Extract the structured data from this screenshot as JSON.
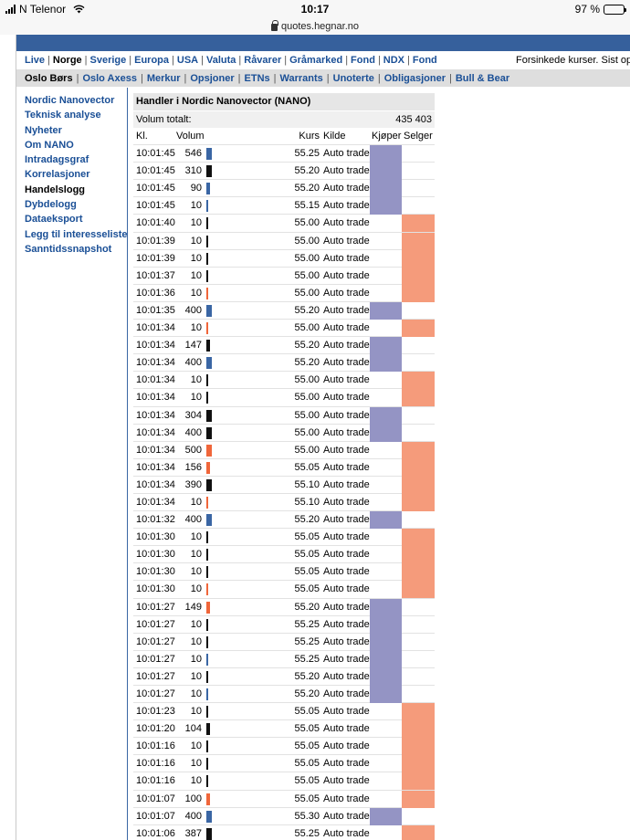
{
  "status_bar": {
    "carrier": "N Telenor",
    "time": "10:17",
    "battery": "97 %",
    "battery_level": 0.97
  },
  "url_bar": {
    "url": "quotes.hegnar.no"
  },
  "main_nav": {
    "items": [
      "Live",
      "Norge",
      "Sverige",
      "Europa",
      "USA",
      "Valuta",
      "Råvarer",
      "Gråmarked",
      "Fond",
      "NDX",
      "Fond"
    ],
    "active": "Norge",
    "delayed_notice": "Forsinkede kurser. Sist opp"
  },
  "sub_nav": {
    "items": [
      "Oslo Børs",
      "Oslo Axess",
      "Merkur",
      "Opsjoner",
      "ETNs",
      "Warrants",
      "Unoterte",
      "Obligasjoner",
      "Bull & Bear"
    ],
    "active": "Oslo Børs"
  },
  "sidebar": {
    "items": [
      "Nordic Nanovector",
      "Teknisk analyse",
      "Nyheter",
      "Om NANO",
      "Intradagsgraf",
      "Korrelasjoner",
      "Handelslogg",
      "Dybdelogg",
      "Dataeksport",
      "Legg til interesseliste",
      "Sanntidssnapshot"
    ],
    "active": "Handelslogg"
  },
  "trades": {
    "title": "Handler i Nordic Nanovector (NANO)",
    "total_label": "Volum totalt:",
    "total_value": "435 403",
    "columns": {
      "time": "Kl.",
      "volume": "Volum",
      "price": "Kurs",
      "source": "Kilde",
      "buyer": "Kjøper",
      "seller": "Selger"
    },
    "colors": {
      "buy": "#9494c4",
      "sell": "#f59b7b",
      "bar_blue": "#3a66a4",
      "bar_black": "#111111",
      "bar_orange": "#f0663a"
    },
    "rows": [
      {
        "time": "10:01:45",
        "volume": "546",
        "price": "55.25",
        "source": "Auto trade",
        "bar": "blue",
        "side": "buy"
      },
      {
        "time": "10:01:45",
        "volume": "310",
        "price": "55.20",
        "source": "Auto trade",
        "bar": "black",
        "side": "buy"
      },
      {
        "time": "10:01:45",
        "volume": "90",
        "price": "55.20",
        "source": "Auto trade",
        "bar": "blue",
        "side": "buy"
      },
      {
        "time": "10:01:45",
        "volume": "10",
        "price": "55.15",
        "source": "Auto trade",
        "bar": "blue",
        "side": "buy"
      },
      {
        "time": "10:01:40",
        "volume": "10",
        "price": "55.00",
        "source": "Auto trade",
        "bar": "black",
        "side": "sell"
      },
      {
        "time": "10:01:39",
        "volume": "10",
        "price": "55.00",
        "source": "Auto trade",
        "bar": "black",
        "side": "sell"
      },
      {
        "time": "10:01:39",
        "volume": "10",
        "price": "55.00",
        "source": "Auto trade",
        "bar": "black",
        "side": "sell"
      },
      {
        "time": "10:01:37",
        "volume": "10",
        "price": "55.00",
        "source": "Auto trade",
        "bar": "black",
        "side": "sell"
      },
      {
        "time": "10:01:36",
        "volume": "10",
        "price": "55.00",
        "source": "Auto trade",
        "bar": "orange",
        "side": "sell"
      },
      {
        "time": "10:01:35",
        "volume": "400",
        "price": "55.20",
        "source": "Auto trade",
        "bar": "blue",
        "side": "buy"
      },
      {
        "time": "10:01:34",
        "volume": "10",
        "price": "55.00",
        "source": "Auto trade",
        "bar": "orange",
        "side": "sell"
      },
      {
        "time": "10:01:34",
        "volume": "147",
        "price": "55.20",
        "source": "Auto trade",
        "bar": "black",
        "side": "buy"
      },
      {
        "time": "10:01:34",
        "volume": "400",
        "price": "55.20",
        "source": "Auto trade",
        "bar": "blue",
        "side": "buy"
      },
      {
        "time": "10:01:34",
        "volume": "10",
        "price": "55.00",
        "source": "Auto trade",
        "bar": "black",
        "side": "sell"
      },
      {
        "time": "10:01:34",
        "volume": "10",
        "price": "55.00",
        "source": "Auto trade",
        "bar": "black",
        "side": "sell"
      },
      {
        "time": "10:01:34",
        "volume": "304",
        "price": "55.00",
        "source": "Auto trade",
        "bar": "black",
        "side": "buy"
      },
      {
        "time": "10:01:34",
        "volume": "400",
        "price": "55.00",
        "source": "Auto trade",
        "bar": "black",
        "side": "buy"
      },
      {
        "time": "10:01:34",
        "volume": "500",
        "price": "55.00",
        "source": "Auto trade",
        "bar": "orange",
        "side": "sell"
      },
      {
        "time": "10:01:34",
        "volume": "156",
        "price": "55.05",
        "source": "Auto trade",
        "bar": "orange",
        "side": "sell"
      },
      {
        "time": "10:01:34",
        "volume": "390",
        "price": "55.10",
        "source": "Auto trade",
        "bar": "black",
        "side": "sell"
      },
      {
        "time": "10:01:34",
        "volume": "10",
        "price": "55.10",
        "source": "Auto trade",
        "bar": "orange",
        "side": "sell"
      },
      {
        "time": "10:01:32",
        "volume": "400",
        "price": "55.20",
        "source": "Auto trade",
        "bar": "blue",
        "side": "buy"
      },
      {
        "time": "10:01:30",
        "volume": "10",
        "price": "55.05",
        "source": "Auto trade",
        "bar": "black",
        "side": "sell"
      },
      {
        "time": "10:01:30",
        "volume": "10",
        "price": "55.05",
        "source": "Auto trade",
        "bar": "black",
        "side": "sell"
      },
      {
        "time": "10:01:30",
        "volume": "10",
        "price": "55.05",
        "source": "Auto trade",
        "bar": "black",
        "side": "sell"
      },
      {
        "time": "10:01:30",
        "volume": "10",
        "price": "55.05",
        "source": "Auto trade",
        "bar": "orange",
        "side": "sell"
      },
      {
        "time": "10:01:27",
        "volume": "149",
        "price": "55.20",
        "source": "Auto trade",
        "bar": "orange",
        "side": "buy"
      },
      {
        "time": "10:01:27",
        "volume": "10",
        "price": "55.25",
        "source": "Auto trade",
        "bar": "black",
        "side": "buy"
      },
      {
        "time": "10:01:27",
        "volume": "10",
        "price": "55.25",
        "source": "Auto trade",
        "bar": "black",
        "side": "buy"
      },
      {
        "time": "10:01:27",
        "volume": "10",
        "price": "55.25",
        "source": "Auto trade",
        "bar": "blue",
        "side": "buy"
      },
      {
        "time": "10:01:27",
        "volume": "10",
        "price": "55.20",
        "source": "Auto trade",
        "bar": "black",
        "side": "buy"
      },
      {
        "time": "10:01:27",
        "volume": "10",
        "price": "55.20",
        "source": "Auto trade",
        "bar": "blue",
        "side": "buy"
      },
      {
        "time": "10:01:23",
        "volume": "10",
        "price": "55.05",
        "source": "Auto trade",
        "bar": "black",
        "side": "sell"
      },
      {
        "time": "10:01:20",
        "volume": "104",
        "price": "55.05",
        "source": "Auto trade",
        "bar": "black",
        "side": "sell"
      },
      {
        "time": "10:01:16",
        "volume": "10",
        "price": "55.05",
        "source": "Auto trade",
        "bar": "black",
        "side": "sell"
      },
      {
        "time": "10:01:16",
        "volume": "10",
        "price": "55.05",
        "source": "Auto trade",
        "bar": "black",
        "side": "sell"
      },
      {
        "time": "10:01:16",
        "volume": "10",
        "price": "55.05",
        "source": "Auto trade",
        "bar": "black",
        "side": "sell"
      },
      {
        "time": "10:01:07",
        "volume": "100",
        "price": "55.05",
        "source": "Auto trade",
        "bar": "orange",
        "side": "sell"
      },
      {
        "time": "10:01:07",
        "volume": "400",
        "price": "55.30",
        "source": "Auto trade",
        "bar": "blue",
        "side": "buy"
      },
      {
        "time": "10:01:06",
        "volume": "387",
        "price": "55.25",
        "source": "Auto trade",
        "bar": "black",
        "side": "sell"
      }
    ]
  }
}
